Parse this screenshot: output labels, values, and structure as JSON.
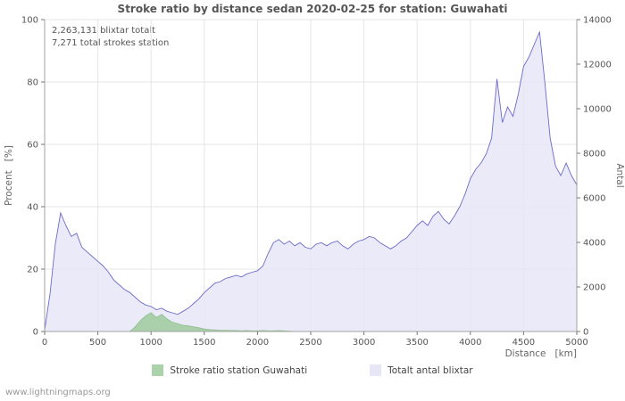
{
  "annotations": {
    "line1": "2,263,131 blixtar totalt",
    "line2": "7,271 total strokes station"
  },
  "axes": {
    "left_label": "Procent   [%]",
    "right_label": "Antal",
    "x_label": "Distance   [km]",
    "left_ticks": [
      0,
      20,
      40,
      60,
      80,
      100
    ],
    "right_ticks": [
      0,
      2000,
      4000,
      6000,
      8000,
      10000,
      12000,
      14000
    ],
    "x_ticks": [
      0,
      500,
      1000,
      1500,
      2000,
      2500,
      3000,
      3500,
      4000,
      4500,
      5000
    ]
  },
  "legend": [
    {
      "label": "Stroke ratio station Guwahati",
      "color": "#abd3ab"
    },
    {
      "label": "Totalt antal blixtar",
      "color": "#e6e6f7"
    }
  ],
  "footer": "www.lightningmaps.org",
  "chart_data": {
    "type": "area",
    "title": "Stroke ratio by distance sedan 2020-02-25 for station: Guwahati",
    "xlabel": "Distance [km]",
    "ylabel_left": "Procent [%]",
    "ylabel_right": "Antal",
    "xlim": [
      0,
      5000
    ],
    "ylim_left": [
      0,
      100
    ],
    "ylim_right": [
      0,
      14000
    ],
    "grid": true,
    "legend_position": "bottom",
    "x_start": 0,
    "x_step": 50,
    "series": [
      {
        "name": "Totalt antal blixtar",
        "axis": "left-percent-equivalent",
        "fill": "#e6e6f7",
        "opacity": 0.85,
        "line": "#6a6ac9",
        "line_width": 0.9,
        "values": [
          0.5,
          12,
          28,
          38,
          34,
          30.5,
          31.5,
          27,
          25.5,
          24,
          22.5,
          21,
          19,
          16.5,
          15,
          13.5,
          12.5,
          11,
          9.5,
          8.5,
          8,
          7,
          7.5,
          6.5,
          6,
          5.5,
          6.5,
          7.5,
          9,
          10.5,
          12.5,
          14,
          15.5,
          16,
          17,
          17.5,
          18,
          17.5,
          18.5,
          19,
          19.5,
          21,
          25,
          28.5,
          29.5,
          28,
          29,
          27.5,
          28.5,
          27,
          26.5,
          28,
          28.5,
          27.5,
          28.5,
          29,
          27.5,
          26.5,
          28,
          29,
          29.5,
          30.5,
          30,
          28.5,
          27.5,
          26.5,
          27.5,
          29,
          30,
          32,
          34,
          35.5,
          34,
          37,
          38.5,
          36,
          34.5,
          37,
          40,
          44,
          49,
          52,
          54,
          57,
          62,
          81,
          67,
          72,
          69,
          76,
          85,
          88,
          92,
          96,
          80,
          62,
          53,
          50,
          54,
          50,
          47
        ]
      },
      {
        "name": "Stroke ratio station Guwahati",
        "axis": "left-percent",
        "fill": "#a6cfa6",
        "opacity": 0.95,
        "line": "#8fbf8f",
        "line_width": 0.8,
        "values": [
          0,
          0,
          0,
          0,
          0,
          0,
          0,
          0,
          0,
          0,
          0,
          0,
          0,
          0,
          0,
          0,
          0,
          1.5,
          3.5,
          5,
          6,
          4.5,
          5.5,
          4,
          3,
          2.5,
          2,
          1.8,
          1.5,
          1.2,
          0.8,
          0.6,
          0.5,
          0.4,
          0.4,
          0.3,
          0.3,
          0.2,
          0.3,
          0.2,
          0.2,
          0.3,
          0.2,
          0.2,
          0.3,
          0.2,
          0.1,
          0,
          0,
          0,
          0,
          0,
          0,
          0,
          0,
          0,
          0,
          0,
          0,
          0,
          0,
          0,
          0,
          0,
          0,
          0,
          0,
          0,
          0,
          0,
          0,
          0,
          0,
          0,
          0,
          0,
          0,
          0,
          0,
          0,
          0,
          0,
          0,
          0,
          0,
          0,
          0,
          0,
          0,
          0,
          0,
          0,
          0,
          0,
          0,
          0,
          0,
          0,
          0,
          0,
          0
        ]
      }
    ]
  }
}
